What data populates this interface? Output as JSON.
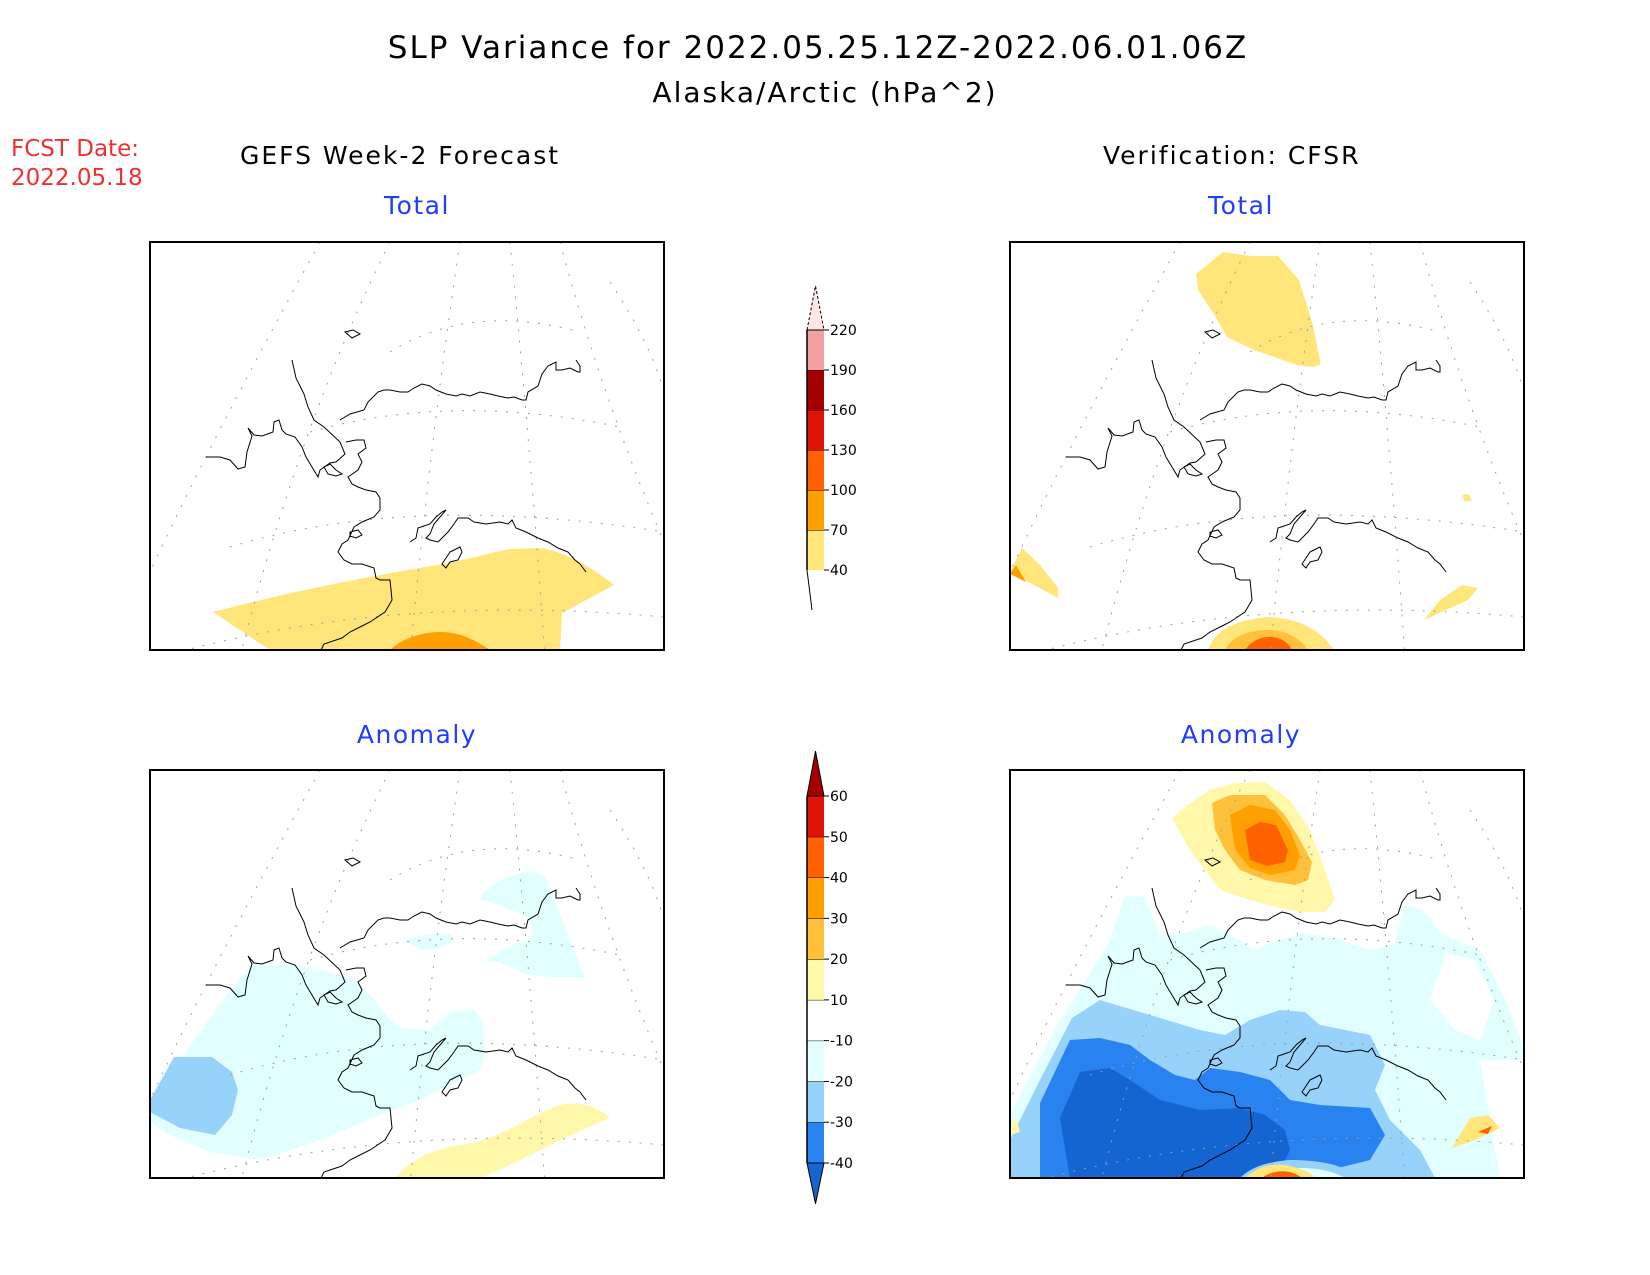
{
  "header": {
    "title": "SLP Variance for 2022.05.25.12Z-2022.06.01.06Z",
    "subtitle": "Alaska/Arctic (hPa^2)",
    "fcst_label": "FCST Date:",
    "fcst_date": "2022.05.18",
    "left_column": "GEFS Week-2 Forecast",
    "right_column": "Verification: CFSR"
  },
  "colors": {
    "title_text": "#000000",
    "fcst_text": "#f03030",
    "panel_title": "#1f3dff"
  },
  "chart_data": [
    {
      "type": "heatmap",
      "id": "gefs-total",
      "title": "Total",
      "column": "GEFS Week-2 Forecast",
      "region": "Alaska/Arctic",
      "shaded_regions": [
        {
          "location": "Gulf of Alaska / North Pacific south of Alaska",
          "range": "40-70"
        },
        {
          "location": "far south edge, central",
          "range": "70-100"
        }
      ]
    },
    {
      "type": "heatmap",
      "id": "cfsr-total",
      "title": "Total",
      "column": "Verification: CFSR",
      "region": "Alaska/Arctic",
      "shaded_regions": [
        {
          "location": "Arctic Ocean north of Alaska",
          "range": "40-70"
        },
        {
          "location": "far southwest corner",
          "range": "40-100"
        },
        {
          "location": "North Pacific south edge",
          "range": "40-130"
        },
        {
          "location": "southeast edge off British Columbia",
          "range": "40-70"
        }
      ]
    },
    {
      "type": "heatmap",
      "id": "gefs-anomaly",
      "title": "Anomaly",
      "column": "GEFS Week-2 Forecast",
      "region": "Alaska/Arctic",
      "shaded_regions": [
        {
          "location": "Bering Sea / western Alaska",
          "range": "-20 to -10"
        },
        {
          "location": "southwest Bering Sea",
          "range": "-30 to -20"
        },
        {
          "location": "interior Alaska / Yukon patches",
          "range": "-20 to -10"
        },
        {
          "location": "Gulf of Alaska south edge",
          "range": "10-20"
        }
      ]
    },
    {
      "type": "heatmap",
      "id": "cfsr-anomaly",
      "title": "Anomaly",
      "column": "Verification: CFSR",
      "region": "Alaska/Arctic",
      "shaded_regions": [
        {
          "location": "Arctic Ocean north of Alaska",
          "range": "10-50"
        },
        {
          "location": "Bering Sea / southern Alaska",
          "range": "-40 to -10 (core below -40)"
        },
        {
          "location": "Gulf of Alaska south edge",
          "range": "10-60"
        },
        {
          "location": "southeast edge",
          "range": "10-40"
        }
      ]
    }
  ],
  "colorbars": {
    "total": {
      "labels": [
        "40",
        "70",
        "100",
        "130",
        "160",
        "190",
        "220"
      ],
      "colors": [
        "#ffe57a",
        "#ffa000",
        "#ff6000",
        "#e01406",
        "#a50000",
        "#f3a0a0",
        "#ffe5e5"
      ]
    },
    "anomaly": {
      "labels": [
        "-40",
        "-30",
        "-20",
        "-10",
        "10",
        "20",
        "30",
        "40",
        "50",
        "60"
      ],
      "colors": [
        "#1464d2",
        "#2882f0",
        "#96d2fa",
        "#e1ffff",
        "#ffffff",
        "#fff8aa",
        "#ffc03c",
        "#ffa000",
        "#ff6000",
        "#e01406",
        "#a50000"
      ]
    }
  }
}
